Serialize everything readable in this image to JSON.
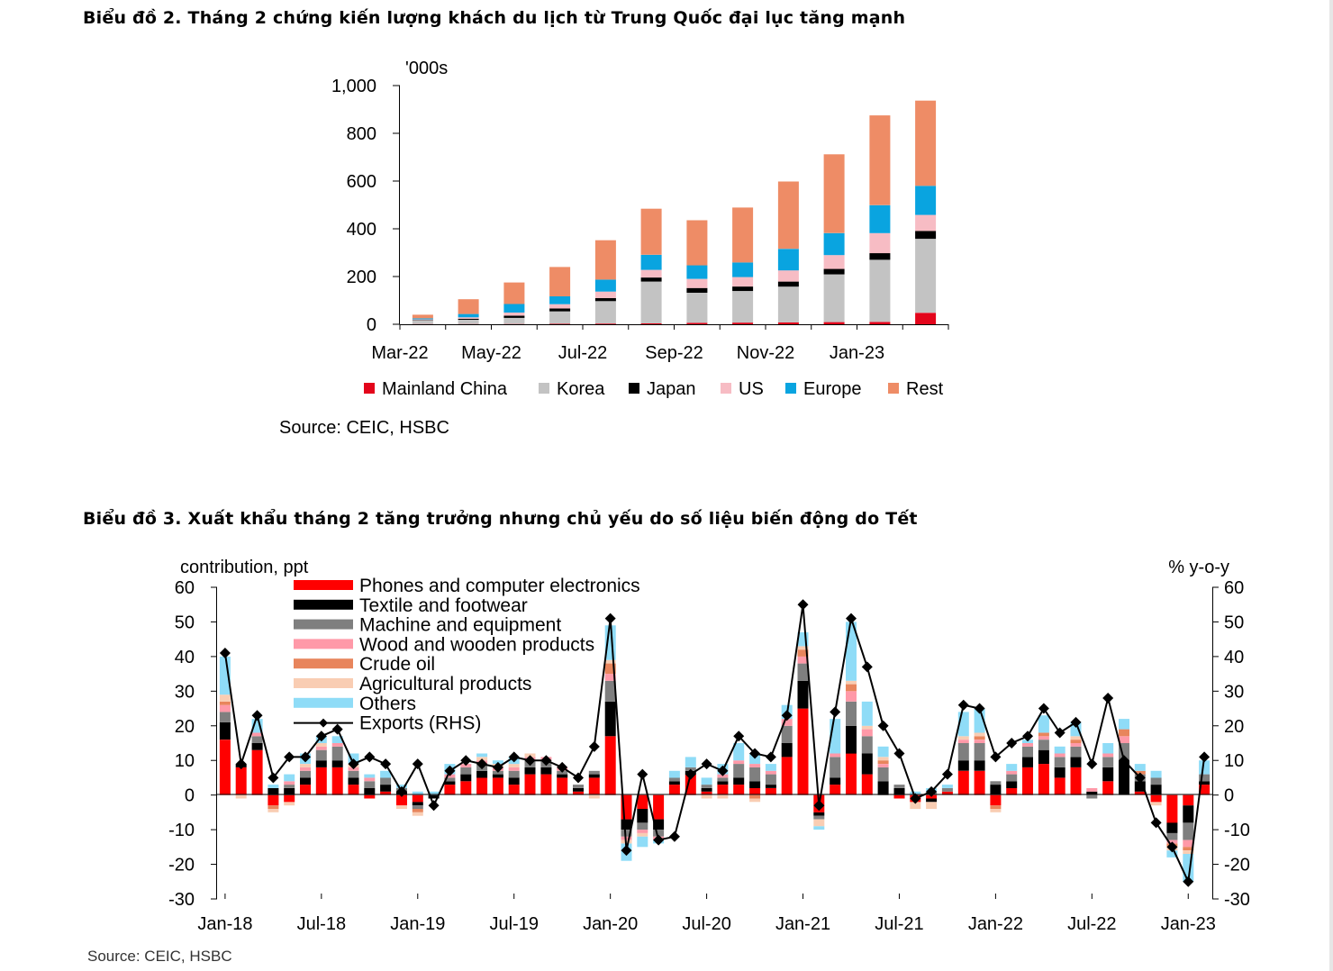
{
  "chart_data": [
    {
      "type": "bar",
      "stacked": true,
      "title": "Biểu đồ 2. Tháng 2 chứng kiến lượng khách du lịch từ Trung Quốc đại lục tăng mạnh",
      "unit_label": "'000s",
      "xlabel": "",
      "ylabel": "'000s",
      "ylim": [
        0,
        1000
      ],
      "yticks": [
        0,
        200,
        400,
        600,
        800,
        1000
      ],
      "ytick_labels": [
        "0",
        "200",
        "400",
        "600",
        "800",
        "1,000"
      ],
      "categories": [
        "Mar-22",
        "Apr-22",
        "May-22",
        "Jun-22",
        "Jul-22",
        "Aug-22",
        "Sep-22",
        "Oct-22",
        "Nov-22",
        "Dec-22",
        "Jan-23",
        "Feb-23"
      ],
      "tick_labels": [
        "Mar-22",
        "May-22",
        "Jul-22",
        "Sep-22",
        "Nov-22",
        "Jan-23"
      ],
      "series": [
        {
          "name": "Mainland China",
          "color": "#e3051b",
          "values": [
            1,
            1,
            1,
            2,
            3,
            4,
            6,
            7,
            8,
            9,
            10,
            48
          ]
        },
        {
          "name": "Korea",
          "color": "#c3c3c3",
          "values": [
            15,
            18,
            26,
            52,
            94,
            175,
            126,
            132,
            150,
            200,
            260,
            310
          ]
        },
        {
          "name": "Japan",
          "color": "#000000",
          "values": [
            2,
            4,
            9,
            12,
            13,
            17,
            20,
            19,
            21,
            23,
            28,
            33
          ]
        },
        {
          "name": "US",
          "color": "#f7bcc4",
          "values": [
            3,
            6,
            13,
            18,
            27,
            32,
            38,
            40,
            47,
            58,
            84,
            67
          ]
        },
        {
          "name": "Europe",
          "color": "#09a4e0",
          "values": [
            4,
            14,
            36,
            33,
            50,
            63,
            57,
            61,
            90,
            92,
            117,
            122
          ]
        },
        {
          "name": "Rest",
          "color": "#ee8c66",
          "values": [
            15,
            62,
            90,
            123,
            165,
            193,
            189,
            230,
            282,
            330,
            376,
            357
          ]
        }
      ],
      "legend_position": "bottom",
      "grid": false,
      "source": "Source: CEIC, HSBC"
    },
    {
      "type": "bar",
      "stacked": true,
      "secondary_line": true,
      "title": "Biểu đồ 3. Xuất khẩu tháng 2 tăng trưởng nhưng chủ yếu do số liệu biến động do Tết",
      "ylabel_left": "contribution, ppt",
      "ylabel_right": "% y-o-y",
      "ylim": [
        -30,
        60
      ],
      "yticks": [
        -30,
        -20,
        -10,
        0,
        10,
        20,
        30,
        40,
        50,
        60
      ],
      "ytick_labels": [
        "-30",
        "-20",
        "-10",
        "0",
        "10",
        "20",
        "30",
        "40",
        "50",
        "60"
      ],
      "x": [
        "Jan-18",
        "Feb-18",
        "Mar-18",
        "Apr-18",
        "May-18",
        "Jun-18",
        "Jul-18",
        "Aug-18",
        "Sep-18",
        "Oct-18",
        "Nov-18",
        "Dec-18",
        "Jan-19",
        "Feb-19",
        "Mar-19",
        "Apr-19",
        "May-19",
        "Jun-19",
        "Jul-19",
        "Aug-19",
        "Sep-19",
        "Oct-19",
        "Nov-19",
        "Dec-19",
        "Jan-20",
        "Feb-20",
        "Mar-20",
        "Apr-20",
        "May-20",
        "Jun-20",
        "Jul-20",
        "Aug-20",
        "Sep-20",
        "Oct-20",
        "Nov-20",
        "Dec-20",
        "Jan-21",
        "Feb-21",
        "Mar-21",
        "Apr-21",
        "May-21",
        "Jun-21",
        "Jul-21",
        "Aug-21",
        "Sep-21",
        "Oct-21",
        "Nov-21",
        "Dec-21",
        "Jan-22",
        "Feb-22",
        "Mar-22",
        "Apr-22",
        "May-22",
        "Jun-22",
        "Jul-22",
        "Aug-22",
        "Sep-22",
        "Oct-22",
        "Nov-22",
        "Dec-22",
        "Jan-23",
        "Feb-23"
      ],
      "tick_labels": [
        "Jan-18",
        "Jul-18",
        "Jan-19",
        "Jul-19",
        "Jan-20",
        "Jul-20",
        "Jan-21",
        "Jul-21",
        "Jan-22",
        "Jul-22",
        "Jan-23"
      ],
      "series": [
        {
          "name": "Phones and computer electronics",
          "color": "#ff0000",
          "values": [
            16,
            8,
            13,
            -3,
            -2,
            3,
            8,
            8,
            3,
            -1,
            1,
            -3,
            -2,
            0,
            3,
            4,
            5,
            5,
            3,
            6,
            6,
            5,
            1,
            5,
            17,
            -7,
            -4,
            -7,
            3,
            6,
            1,
            3,
            3,
            2,
            2,
            11,
            25,
            -5,
            3,
            12,
            6,
            0,
            -1,
            -2,
            -1,
            1,
            7,
            7,
            -3,
            2,
            8,
            9,
            5,
            8,
            0,
            4,
            0,
            1,
            -2,
            -8,
            -3,
            3
          ]
        },
        {
          "name": "Textile and footwear",
          "color": "#000000",
          "values": [
            5,
            1,
            2,
            2,
            2,
            2,
            2,
            2,
            2,
            2,
            2,
            1,
            -1,
            -1,
            1,
            2,
            2,
            1,
            2,
            2,
            2,
            1,
            1,
            1,
            10,
            -3,
            -4,
            -3,
            1,
            1,
            1,
            1,
            2,
            2,
            1,
            4,
            8,
            -1,
            2,
            8,
            6,
            4,
            2,
            0,
            -1,
            0,
            3,
            3,
            3,
            2,
            3,
            4,
            3,
            3,
            1,
            4,
            10,
            3,
            3,
            -3,
            -5,
            1
          ]
        },
        {
          "name": "Machine and equipment",
          "color": "#7f7f7f",
          "values": [
            3,
            0,
            2,
            0,
            1,
            2,
            3,
            4,
            2,
            2,
            2,
            1,
            -1,
            0,
            1,
            2,
            2,
            1,
            2,
            2,
            2,
            1,
            1,
            1,
            6,
            -2,
            -2,
            -2,
            1,
            1,
            1,
            1,
            4,
            4,
            3,
            5,
            5,
            -1,
            6,
            7,
            5,
            4,
            1,
            0,
            1,
            1,
            5,
            5,
            1,
            2,
            3,
            3,
            3,
            3,
            -1,
            3,
            5,
            2,
            2,
            -2,
            -5,
            2
          ]
        },
        {
          "name": "Wood and wooden products",
          "color": "#ff99a8",
          "values": [
            2,
            0,
            1,
            0,
            1,
            1,
            1,
            1,
            1,
            1,
            0,
            0,
            0,
            0,
            1,
            1,
            1,
            1,
            1,
            1,
            1,
            1,
            0,
            0,
            2,
            -1,
            -1,
            -1,
            0,
            0,
            0,
            1,
            1,
            1,
            1,
            2,
            2,
            0,
            1,
            3,
            2,
            1,
            0,
            0,
            0,
            0,
            1,
            1,
            0,
            1,
            1,
            1,
            1,
            1,
            1,
            1,
            2,
            0,
            0,
            -1,
            -2,
            0
          ]
        },
        {
          "name": "Crude oil",
          "color": "#e8855c",
          "values": [
            1,
            0,
            0,
            -1,
            0,
            0,
            0,
            0,
            0,
            0,
            0,
            0,
            -1,
            0,
            0,
            0,
            0,
            0,
            0,
            0,
            0,
            0,
            0,
            0,
            3,
            0,
            0,
            0,
            0,
            0,
            0,
            0,
            0,
            -1,
            0,
            0,
            2,
            0,
            0,
            2,
            0,
            1,
            0,
            0,
            0,
            0,
            0,
            1,
            -1,
            0,
            0,
            1,
            0,
            1,
            0,
            0,
            2,
            1,
            0,
            -1,
            -1,
            0
          ]
        },
        {
          "name": "Agricultural products",
          "color": "#f9cdb3",
          "values": [
            2,
            -1,
            0,
            -1,
            -1,
            1,
            1,
            0,
            1,
            0,
            0,
            -1,
            -1,
            0,
            0,
            0,
            1,
            1,
            1,
            1,
            0,
            0,
            0,
            -1,
            1,
            -1,
            -1,
            0,
            0,
            0,
            -1,
            -1,
            0,
            -1,
            0,
            0,
            1,
            -2,
            0,
            1,
            1,
            1,
            0,
            -2,
            -2,
            0,
            1,
            1,
            -1,
            0,
            0,
            0,
            0,
            1,
            0,
            0,
            0,
            0,
            -1,
            -1,
            -1,
            0
          ]
        },
        {
          "name": "Others",
          "color": "#8fdcf7",
          "values": [
            11,
            0,
            4,
            1,
            2,
            3,
            2,
            2,
            3,
            1,
            2,
            1,
            1,
            1,
            3,
            0,
            1,
            1,
            2,
            0,
            0,
            0,
            0,
            0,
            10,
            -5,
            -3,
            -1,
            2,
            3,
            2,
            3,
            5,
            3,
            2,
            4,
            4,
            -1,
            10,
            17,
            7,
            3,
            0,
            1,
            1,
            1,
            7,
            7,
            0,
            2,
            1,
            5,
            2,
            4,
            0,
            3,
            3,
            2,
            2,
            -2,
            -8,
            4
          ]
        }
      ],
      "line": {
        "name": "Exports (RHS)",
        "color": "#000000",
        "values": [
          41,
          9,
          23,
          5,
          11,
          11,
          17,
          19,
          9,
          11,
          9,
          1,
          9,
          -3,
          7,
          10,
          9,
          8,
          11,
          10,
          10,
          8,
          5,
          14,
          51,
          -16,
          6,
          -13,
          -12,
          6,
          9,
          7,
          17,
          12,
          11,
          23,
          55,
          -3,
          24,
          51,
          37,
          20,
          12,
          -1,
          1,
          6,
          26,
          25,
          11,
          15,
          17,
          25,
          18,
          21,
          9,
          28,
          10,
          5,
          -8,
          -15,
          -25,
          11
        ]
      },
      "legend_position": "top-left",
      "source": "Source: CEIC, HSBC"
    }
  ]
}
